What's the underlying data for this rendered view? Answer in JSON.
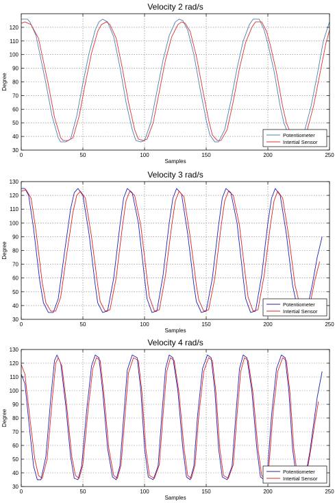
{
  "chart_data": [
    {
      "type": "line",
      "title": "Velocity 2 rad/s",
      "xlabel": "Samples",
      "ylabel": "Degree",
      "xlim": [
        0,
        250
      ],
      "ylim": [
        30,
        130
      ],
      "xticks": [
        0,
        50,
        100,
        150,
        200,
        250
      ],
      "yticks": [
        30,
        40,
        50,
        60,
        70,
        80,
        90,
        100,
        110,
        120
      ],
      "grid": true,
      "legend_position": "bottom-right",
      "series": [
        {
          "name": "Potentiometer",
          "color": "#4a7fb5",
          "x": [
            0,
            5,
            7,
            12,
            20,
            25,
            30,
            32,
            36,
            40,
            45,
            50,
            55,
            60,
            63,
            66,
            70,
            75,
            80,
            85,
            90,
            93,
            97,
            100,
            105,
            110,
            115,
            120,
            125,
            128,
            131,
            135,
            140,
            145,
            150,
            153,
            157,
            160,
            165,
            170,
            175,
            180,
            185,
            188,
            193,
            197,
            200,
            205,
            210,
            213,
            218,
            221,
            225,
            230,
            235,
            240,
            245,
            250
          ],
          "y": [
            126,
            126,
            124,
            114,
            79,
            55,
            39,
            36,
            36,
            38,
            55,
            79,
            101,
            118,
            124,
            126,
            124,
            113,
            91,
            65,
            45,
            37,
            36,
            37,
            50,
            73,
            96,
            114,
            124,
            126,
            125,
            118,
            100,
            75,
            52,
            41,
            36,
            36,
            45,
            66,
            90,
            110,
            122,
            126,
            126,
            118,
            108,
            88,
            62,
            50,
            38,
            36,
            36,
            45,
            62,
            85,
            110,
            124
          ]
        },
        {
          "name": "Intertial Sensor",
          "color": "#e03030",
          "x": [
            0,
            3,
            8,
            14,
            22,
            27,
            32,
            34,
            38,
            42,
            47,
            52,
            57,
            62,
            65,
            69,
            72,
            77,
            82,
            87,
            92,
            95,
            99,
            102,
            107,
            112,
            117,
            122,
            127,
            130,
            133,
            137,
            142,
            147,
            152,
            155,
            159,
            162,
            167,
            172,
            177,
            182,
            187,
            190,
            195,
            199,
            202,
            207,
            212,
            215,
            220,
            223,
            227,
            232,
            237,
            242,
            247,
            250
          ],
          "y": [
            123,
            124,
            122,
            112,
            78,
            54,
            39,
            37,
            37,
            39,
            55,
            79,
            101,
            117,
            122,
            124,
            122,
            112,
            90,
            65,
            45,
            38,
            37,
            38,
            50,
            73,
            96,
            113,
            122,
            124,
            123,
            117,
            99,
            75,
            52,
            41,
            37,
            37,
            45,
            66,
            90,
            109,
            120,
            124,
            124,
            117,
            107,
            87,
            62,
            50,
            39,
            37,
            37,
            45,
            62,
            85,
            108,
            118
          ]
        }
      ]
    },
    {
      "type": "line",
      "title": "Velocity 3 rad/s",
      "xlabel": "Samples",
      "ylabel": "Degree",
      "xlim": [
        0,
        250
      ],
      "ylim": [
        30,
        130
      ],
      "xticks": [
        0,
        50,
        100,
        150,
        200,
        250
      ],
      "yticks": [
        30,
        40,
        50,
        60,
        70,
        80,
        90,
        100,
        110,
        120,
        130
      ],
      "grid": true,
      "legend_position": "bottom-right",
      "series": [
        {
          "name": "Potentiometer",
          "color": "#1f1fb4",
          "x": [
            0,
            3,
            6,
            10,
            15,
            18,
            22,
            26,
            30,
            35,
            40,
            43,
            46,
            50,
            55,
            60,
            62,
            66,
            70,
            75,
            80,
            83,
            86,
            90,
            95,
            100,
            102,
            106,
            110,
            115,
            120,
            123,
            126,
            130,
            135,
            140,
            142,
            146,
            150,
            155,
            160,
            163,
            166,
            170,
            175,
            180,
            182,
            186,
            190,
            195,
            200,
            203,
            206,
            210,
            215,
            220,
            224,
            228,
            232,
            236,
            240,
            244
          ],
          "y": [
            125,
            125,
            120,
            96,
            58,
            42,
            35,
            35,
            45,
            78,
            110,
            122,
            125,
            120,
            92,
            55,
            42,
            35,
            36,
            60,
            98,
            118,
            125,
            122,
            100,
            60,
            45,
            35,
            36,
            62,
            100,
            118,
            125,
            121,
            92,
            55,
            43,
            35,
            36,
            60,
            98,
            118,
            125,
            122,
            100,
            60,
            45,
            35,
            36,
            62,
            100,
            118,
            125,
            120,
            92,
            55,
            38,
            35,
            38,
            55,
            75,
            90
          ]
        },
        {
          "name": "Intertial Sensor",
          "color": "#e02020",
          "x": [
            0,
            4,
            8,
            12,
            17,
            20,
            24,
            28,
            32,
            37,
            42,
            45,
            48,
            52,
            57,
            62,
            64,
            68,
            72,
            77,
            82,
            85,
            88,
            92,
            97,
            102,
            104,
            108,
            112,
            117,
            122,
            125,
            128,
            132,
            137,
            142,
            144,
            148,
            152,
            157,
            162,
            165,
            168,
            172,
            177,
            182,
            184,
            188,
            192,
            197,
            202,
            205,
            208,
            212,
            217,
            222,
            226,
            230,
            234,
            238,
            242
          ],
          "y": [
            123,
            124,
            118,
            94,
            57,
            42,
            36,
            36,
            46,
            78,
            108,
            120,
            123,
            118,
            90,
            55,
            43,
            36,
            37,
            60,
            97,
            116,
            123,
            120,
            98,
            60,
            46,
            36,
            37,
            62,
            98,
            116,
            123,
            119,
            90,
            55,
            44,
            36,
            37,
            60,
            97,
            116,
            123,
            120,
            98,
            60,
            46,
            36,
            37,
            62,
            98,
            116,
            123,
            118,
            90,
            55,
            40,
            36,
            40,
            58,
            72
          ]
        }
      ]
    },
    {
      "type": "line",
      "title": "Velocity 4 rad/s",
      "xlabel": "Samples",
      "ylabel": "Degree",
      "xlim": [
        0,
        250
      ],
      "ylim": [
        30,
        130
      ],
      "xticks": [
        0,
        50,
        100,
        150,
        200,
        250
      ],
      "yticks": [
        30,
        40,
        50,
        60,
        70,
        80,
        90,
        100,
        110,
        120,
        130
      ],
      "grid": true,
      "legend_position": "bottom-right",
      "series": [
        {
          "name": "Potentiometer",
          "color": "#1f1fb4",
          "x": [
            0,
            3,
            7,
            10,
            13,
            16,
            20,
            24,
            27,
            29,
            32,
            36,
            40,
            43,
            46,
            49,
            53,
            57,
            60,
            63,
            66,
            70,
            74,
            77,
            80,
            83,
            86,
            90,
            94,
            97,
            100,
            103,
            107,
            111,
            114,
            117,
            120,
            123,
            127,
            131,
            134,
            137,
            140,
            143,
            147,
            151,
            154,
            157,
            160,
            163,
            167,
            171,
            174,
            177,
            180,
            183,
            187,
            191,
            194,
            197,
            200,
            203,
            207,
            211,
            214,
            217,
            220,
            223,
            227,
            231,
            234,
            237,
            240,
            244
          ],
          "y": [
            112,
            105,
            70,
            45,
            35,
            35,
            52,
            95,
            122,
            126,
            120,
            90,
            52,
            36,
            35,
            45,
            85,
            118,
            126,
            124,
            100,
            58,
            37,
            35,
            45,
            80,
            115,
            126,
            124,
            100,
            58,
            37,
            35,
            45,
            82,
            116,
            126,
            124,
            100,
            58,
            37,
            35,
            45,
            82,
            116,
            126,
            124,
            100,
            58,
            37,
            35,
            45,
            82,
            116,
            126,
            124,
            100,
            58,
            37,
            35,
            45,
            82,
            116,
            126,
            124,
            100,
            58,
            37,
            35,
            40,
            55,
            75,
            95,
            114
          ]
        },
        {
          "name": "Intertial Sensor",
          "color": "#e02020",
          "x": [
            0,
            3,
            7,
            11,
            14,
            17,
            21,
            25,
            28,
            30,
            33,
            37,
            41,
            44,
            47,
            50,
            54,
            58,
            61,
            64,
            67,
            71,
            75,
            78,
            81,
            84,
            87,
            91,
            95,
            98,
            101,
            104,
            108,
            112,
            115,
            118,
            121,
            124,
            128,
            132,
            135,
            138,
            141,
            144,
            148,
            152,
            155,
            158,
            161,
            164,
            168,
            172,
            175,
            178,
            181,
            184,
            188,
            192,
            195,
            198,
            201,
            204,
            208,
            212,
            215,
            218,
            221,
            224,
            228,
            232,
            235,
            238,
            241
          ],
          "y": [
            119,
            112,
            80,
            50,
            38,
            36,
            50,
            92,
            120,
            124,
            118,
            88,
            52,
            38,
            36,
            46,
            84,
            116,
            124,
            122,
            98,
            58,
            38,
            36,
            46,
            80,
            113,
            124,
            122,
            98,
            58,
            38,
            36,
            46,
            82,
            114,
            124,
            122,
            98,
            58,
            38,
            36,
            46,
            82,
            114,
            124,
            122,
            98,
            58,
            38,
            36,
            46,
            82,
            114,
            124,
            122,
            98,
            58,
            38,
            36,
            46,
            82,
            114,
            124,
            122,
            98,
            58,
            38,
            36,
            42,
            58,
            76,
            92
          ]
        }
      ]
    }
  ]
}
